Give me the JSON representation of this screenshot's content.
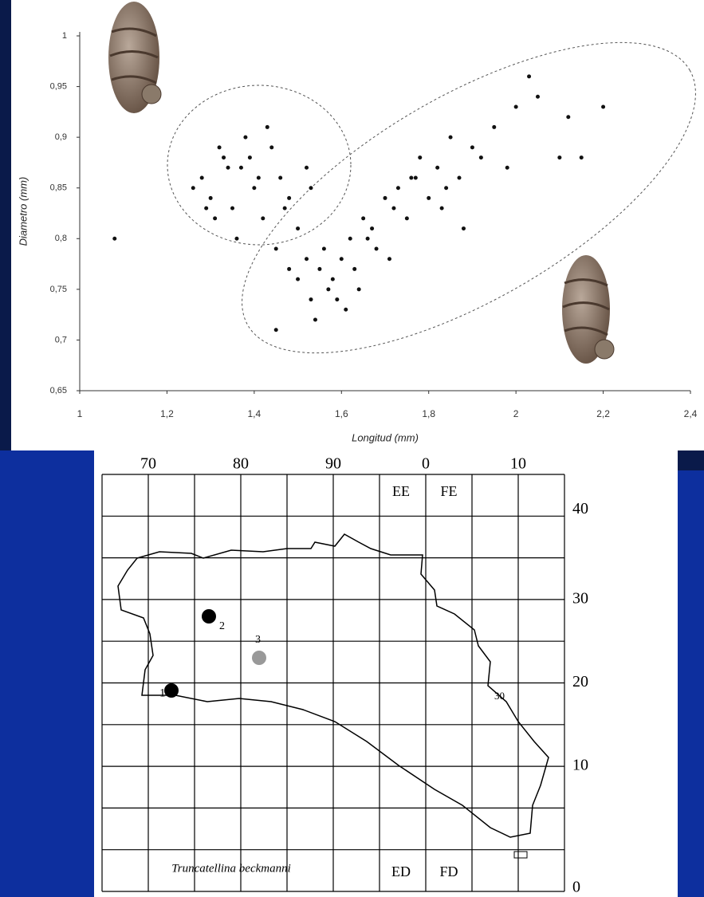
{
  "chart_data": {
    "type": "scatter",
    "xlabel": "Longitud (mm)",
    "ylabel": "Diametro (mm)",
    "series": [
      {
        "color": "#111111",
        "x": [
          1.28,
          1.3,
          1.33,
          1.35,
          1.37,
          1.38,
          1.4,
          1.42,
          1.44,
          1.46,
          1.48,
          1.5,
          1.52,
          1.26,
          1.31,
          1.36,
          1.39,
          1.41,
          1.43,
          1.47,
          1.34,
          1.45,
          1.29,
          1.53,
          1.32,
          1.08
        ],
        "values": [
          0.86,
          0.84,
          0.88,
          0.83,
          0.87,
          0.9,
          0.85,
          0.82,
          0.89,
          0.86,
          0.84,
          0.81,
          0.87,
          0.85,
          0.82,
          0.8,
          0.88,
          0.86,
          0.91,
          0.83,
          0.87,
          0.79,
          0.83,
          0.85,
          0.89,
          0.8
        ]
      },
      {
        "color": "#111111",
        "x": [
          1.48,
          1.5,
          1.52,
          1.53,
          1.55,
          1.56,
          1.57,
          1.58,
          1.6,
          1.62,
          1.63,
          1.65,
          1.67,
          1.68,
          1.7,
          1.72,
          1.73,
          1.75,
          1.77,
          1.78,
          1.8,
          1.82,
          1.84,
          1.85,
          1.87,
          1.9,
          1.92,
          1.95,
          1.98,
          2.0,
          2.03,
          2.05,
          2.1,
          2.12,
          2.15,
          2.2,
          1.54,
          1.59,
          1.61,
          1.66,
          1.71,
          1.76,
          1.83,
          1.88,
          1.45,
          1.64
        ],
        "values": [
          0.77,
          0.76,
          0.78,
          0.74,
          0.77,
          0.79,
          0.75,
          0.76,
          0.78,
          0.8,
          0.77,
          0.82,
          0.81,
          0.79,
          0.84,
          0.83,
          0.85,
          0.82,
          0.86,
          0.88,
          0.84,
          0.87,
          0.85,
          0.9,
          0.86,
          0.89,
          0.88,
          0.91,
          0.87,
          0.93,
          0.96,
          0.94,
          0.88,
          0.92,
          0.88,
          0.93,
          0.72,
          0.74,
          0.73,
          0.8,
          0.78,
          0.86,
          0.83,
          0.81,
          0.71,
          0.75
        ]
      }
    ],
    "xlim": [
      1,
      2.4
    ],
    "ylim": [
      0.65,
      1
    ],
    "xticks": [
      1,
      {
        "value": 1.2,
        "label": "1,2"
      },
      {
        "value": 1.4,
        "label": "1,4"
      },
      {
        "value": 1.6,
        "label": "1,6"
      },
      {
        "value": 1.8,
        "label": "1,8"
      },
      2,
      {
        "value": 2.2,
        "label": "2,2"
      },
      {
        "value": 2.4,
        "label": "2,4"
      }
    ],
    "yticks": [
      {
        "value": 0.65,
        "label": "0,65"
      },
      {
        "value": 0.7,
        "label": "0,7"
      },
      {
        "value": 0.75,
        "label": "0,75"
      },
      {
        "value": 0.8,
        "label": "0,8"
      },
      {
        "value": 0.85,
        "label": "0,85"
      },
      {
        "value": 0.9,
        "label": "0,9"
      },
      {
        "value": 0.95,
        "label": "0,95"
      },
      1
    ],
    "grid": false
  },
  "map": {
    "top_labels": [
      "70",
      "80",
      "90",
      "0",
      "10"
    ],
    "right_labels": [
      "40",
      "30",
      "20",
      "10",
      "0"
    ],
    "cells": [
      "EE",
      "FE",
      "ED",
      "FD"
    ],
    "species": "Truncatellina beckmanni",
    "sites": [
      "1",
      "2",
      "3",
      "30"
    ]
  }
}
